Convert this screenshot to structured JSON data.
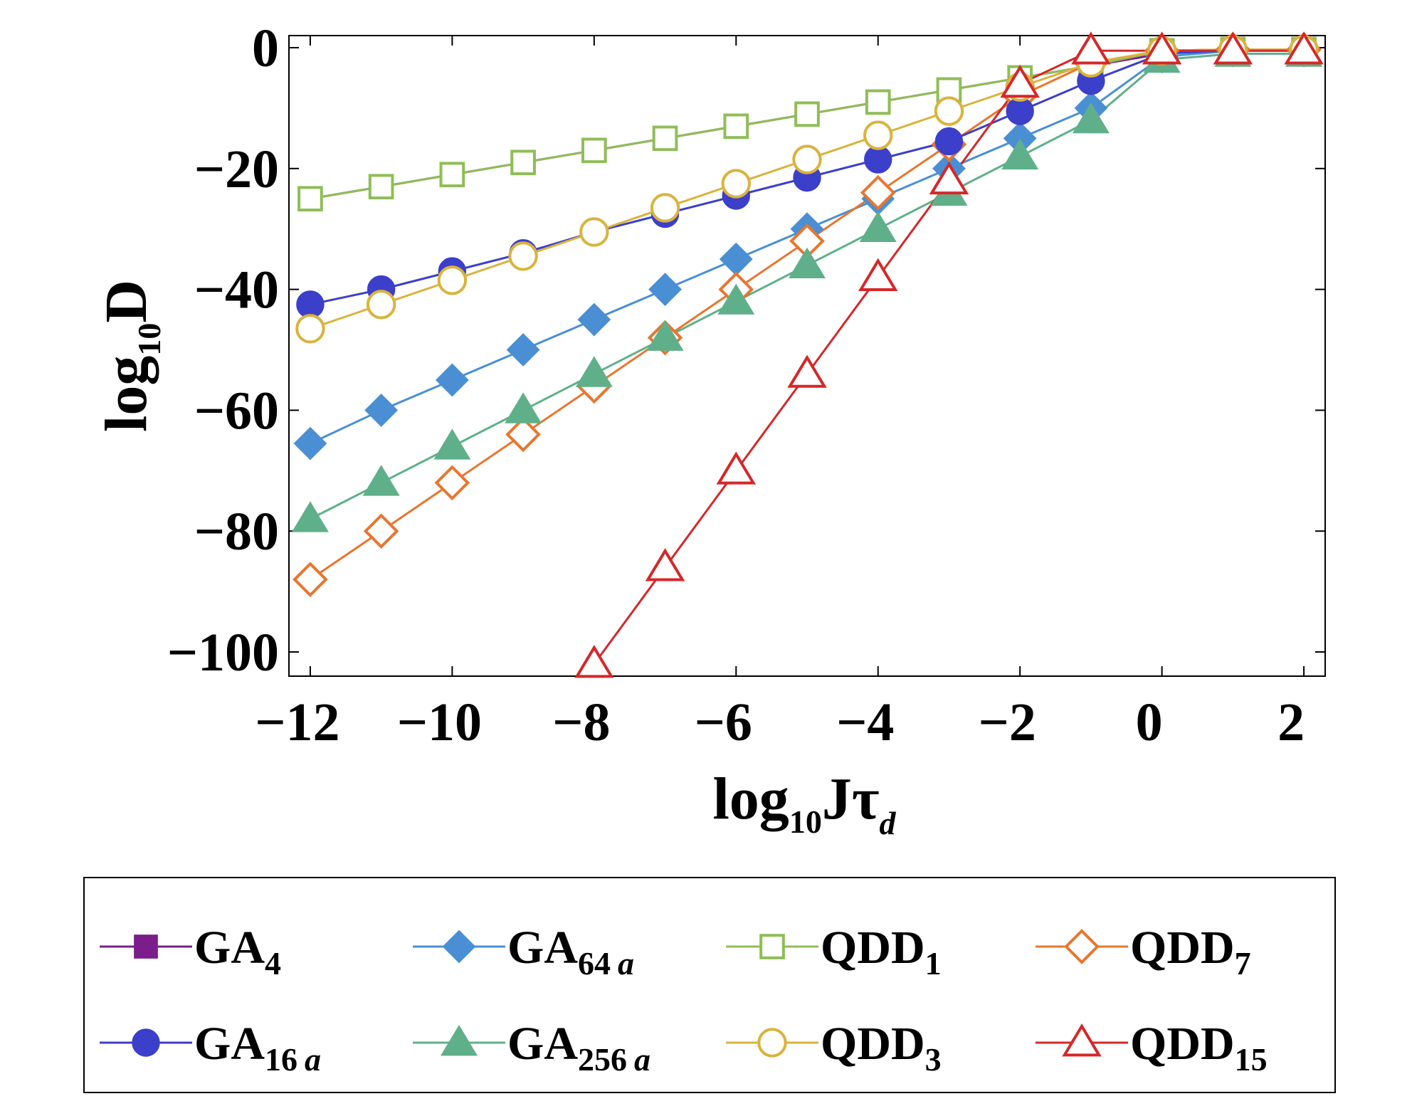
{
  "chart_data": {
    "type": "line",
    "title": "",
    "xlabel": {
      "main": "log",
      "sub": "10",
      "tail": "Jτ",
      "tail_sub": "d"
    },
    "ylabel": {
      "main": "log",
      "sub": "10",
      "tail": "D"
    },
    "xlim": [
      -12.3,
      2.3
    ],
    "ylim": [
      -104,
      2
    ],
    "xticks": [
      {
        "v": -12,
        "label": "−12"
      },
      {
        "v": -10,
        "label": "−10"
      },
      {
        "v": -8,
        "label": "−8"
      },
      {
        "v": -6,
        "label": "−6"
      },
      {
        "v": -4,
        "label": "−4"
      },
      {
        "v": -2,
        "label": "−2"
      },
      {
        "v": 0,
        "label": "0"
      },
      {
        "v": 2,
        "label": "2"
      }
    ],
    "yticks": [
      {
        "v": 0,
        "label": "0"
      },
      {
        "v": -20,
        "label": "−20"
      },
      {
        "v": -40,
        "label": "−40"
      },
      {
        "v": -60,
        "label": "−60"
      },
      {
        "v": -80,
        "label": "−80"
      },
      {
        "v": -100,
        "label": "−100"
      }
    ],
    "x": [
      -12,
      -11,
      -10,
      -9,
      -8,
      -7,
      -6,
      -5,
      -4,
      -3,
      -2,
      -1,
      0,
      1,
      2
    ],
    "series": [
      {
        "key": "ga4",
        "name": "GA",
        "sub": "4",
        "marker": "square-filled",
        "color": "#7b1d8a",
        "edge": "#7b1d8a",
        "values": [
          -25,
          -23,
          -21,
          -19,
          -17,
          -15,
          -13,
          -11,
          -9,
          -7,
          -5,
          -3,
          -1,
          -0.3,
          -0.3
        ]
      },
      {
        "key": "ga64a",
        "name": "GA",
        "sub": "64 a",
        "marker": "diamond-filled",
        "color": "#4a8fd4",
        "edge": "#4a8fd4",
        "values": [
          -65.5,
          -60,
          -55,
          -50,
          -45,
          -40,
          -35,
          -30,
          -25,
          -20,
          -15,
          -10,
          -1.5,
          -0.5,
          -0.5
        ]
      },
      {
        "key": "qdd1",
        "name": "QDD",
        "sub": "1",
        "marker": "square-open",
        "color": "#8fbd57",
        "edge": "#8fbd57",
        "values": [
          -25,
          -23,
          -21,
          -19,
          -17,
          -15,
          -13,
          -11,
          -9,
          -7,
          -5,
          -3,
          -0.5,
          -0.3,
          -0.3
        ]
      },
      {
        "key": "qdd7",
        "name": "QDD",
        "sub": "7",
        "marker": "diamond-open",
        "color": "#e8762f",
        "edge": "#e8762f",
        "values": [
          -88,
          -80,
          -72,
          -64,
          -56,
          -48,
          -40,
          -32,
          -24,
          -16,
          -8,
          -2.5,
          -0.5,
          -0.3,
          -0.3
        ]
      },
      {
        "key": "ga16a",
        "name": "GA",
        "sub": "16 a",
        "marker": "circle-filled",
        "color": "#3c3fc9",
        "edge": "#3c3fc9",
        "values": [
          -42.5,
          -40,
          -37,
          -34,
          -30.5,
          -27.5,
          -24.5,
          -21.5,
          -18.5,
          -15.5,
          -10.5,
          -5.5,
          -1,
          -0.4,
          -0.4
        ]
      },
      {
        "key": "ga256a",
        "name": "GA",
        "sub": "256 a",
        "marker": "triangle-filled",
        "color": "#5fb08a",
        "edge": "#5fb08a",
        "values": [
          -78,
          -72,
          -66,
          -60,
          -54,
          -48,
          -42,
          -36,
          -30,
          -24,
          -18,
          -12,
          -2,
          -1,
          -1
        ]
      },
      {
        "key": "qdd3",
        "name": "QDD",
        "sub": "3",
        "marker": "circle-open",
        "color": "#d9b33d",
        "edge": "#d9b33d",
        "values": [
          -46.5,
          -42.5,
          -38.5,
          -34.5,
          -30.5,
          -26.5,
          -22.5,
          -18.5,
          -14.5,
          -10.5,
          -6.5,
          -2.5,
          -0.5,
          -0.3,
          -0.3
        ]
      },
      {
        "key": "qdd15",
        "name": "QDD",
        "sub": "15",
        "marker": "triangle-open",
        "color": "#d62728",
        "edge": "#d62728",
        "values": [
          null,
          null,
          null,
          null,
          -102,
          -86,
          -70,
          -54,
          -38,
          -22,
          -6,
          -0.5,
          -0.5,
          -0.5,
          -0.5
        ]
      }
    ],
    "legend_position": "bottom",
    "grid": false
  }
}
